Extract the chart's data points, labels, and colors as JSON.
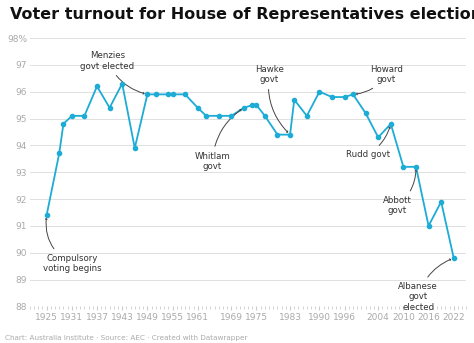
{
  "title": "Voter turnout for House of Representatives elections",
  "years": [
    1925,
    1928,
    1929,
    1931,
    1934,
    1937,
    1940,
    1943,
    1946,
    1949,
    1951,
    1954,
    1955,
    1958,
    1961,
    1963,
    1966,
    1969,
    1972,
    1974,
    1975,
    1977,
    1980,
    1983,
    1984,
    1987,
    1990,
    1993,
    1996,
    1998,
    2001,
    2004,
    2007,
    2010,
    2013,
    2016,
    2019,
    2022
  ],
  "turnout": [
    91.4,
    93.7,
    94.8,
    95.1,
    95.1,
    96.2,
    95.4,
    96.3,
    93.9,
    95.9,
    95.9,
    95.9,
    95.9,
    95.9,
    95.4,
    95.1,
    95.1,
    95.1,
    95.4,
    95.5,
    95.5,
    95.1,
    94.4,
    94.4,
    95.7,
    95.1,
    96.0,
    95.8,
    95.8,
    95.9,
    95.2,
    94.3,
    94.8,
    93.2,
    93.2,
    91.0,
    91.9,
    89.8
  ],
  "line_color": "#1dacd6",
  "marker_color": "#1dacd6",
  "background_color": "#ffffff",
  "title_fontsize": 11.5,
  "grid_color": "#e0e0e0",
  "footer_text": "Chart: Australia Institute · Source: AEC · Created with Datawrapper",
  "ylim": [
    88,
    98.4
  ],
  "yticks": [
    88,
    89,
    90,
    91,
    92,
    93,
    94,
    95,
    96,
    97,
    98
  ],
  "xlim": [
    1921,
    2025
  ],
  "xtick_positions": [
    1925,
    1931,
    1937,
    1943,
    1949,
    1955,
    1961,
    1969,
    1975,
    1983,
    1990,
    1996,
    2004,
    2010,
    2016,
    2022
  ],
  "xtick_labels": [
    "1925",
    "1931",
    "1937",
    "1943",
    "1949",
    "1955",
    "1961",
    "1969",
    "1975",
    "1983",
    "1990",
    "1996",
    "2004",
    "2010",
    "2016",
    "2022"
  ]
}
